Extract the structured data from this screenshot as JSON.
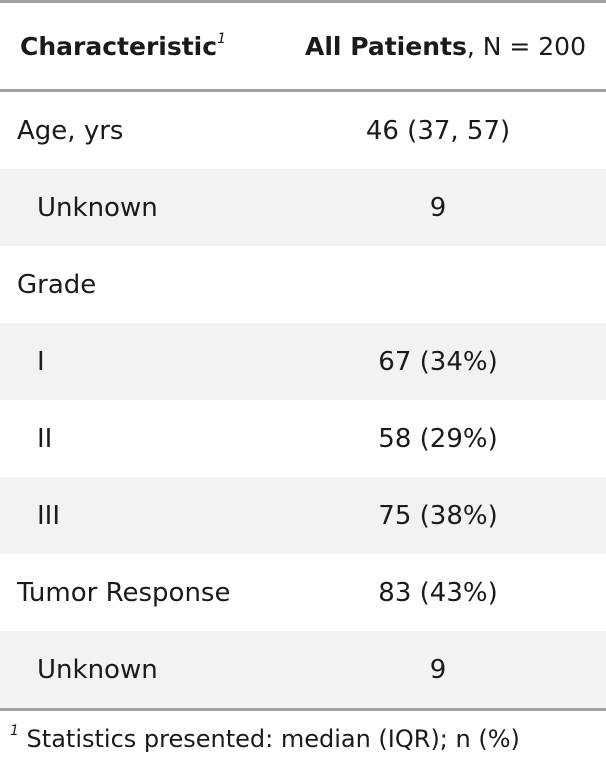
{
  "header": {
    "characteristic_label": "Characteristic",
    "characteristic_footnote_mark": "1",
    "group_label": "All Patients",
    "group_n": ", N = 200"
  },
  "rows": [
    {
      "label": "Age, yrs",
      "value": "46 (37, 57)"
    },
    {
      "label": "Unknown",
      "value": "9"
    },
    {
      "label": "Grade",
      "value": ""
    },
    {
      "label": "I",
      "value": "67 (34%)"
    },
    {
      "label": "II",
      "value": "58 (29%)"
    },
    {
      "label": "III",
      "value": "75 (38%)"
    },
    {
      "label": "Tumor Response",
      "value": "83 (43%)"
    },
    {
      "label": "Unknown",
      "value": "9"
    }
  ],
  "footnote": {
    "mark": "1",
    "text": " Statistics presented: median (IQR); n (%)"
  }
}
